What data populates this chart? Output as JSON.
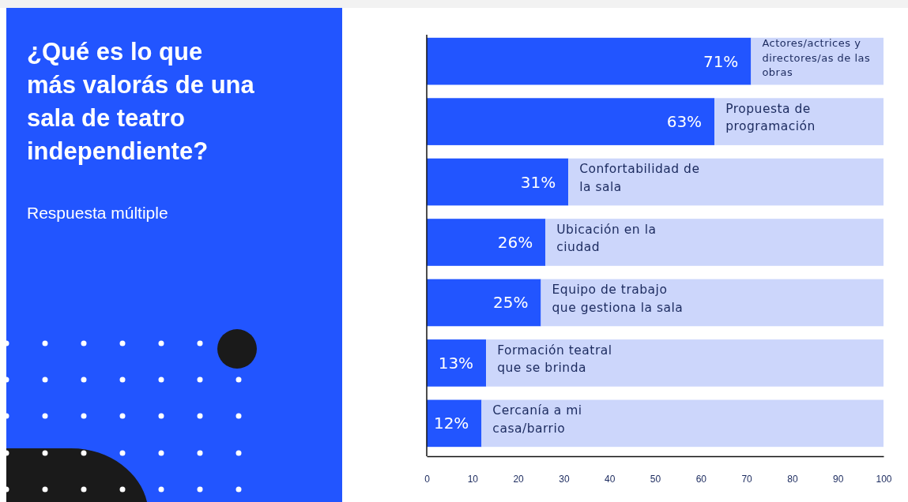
{
  "chart_data": {
    "type": "bar",
    "orientation": "horizontal",
    "stacked": true,
    "title": "¿Qué es lo que más valorás de una sala de teatro independiente?",
    "subtitle": "Respuesta múltiple",
    "categories": [
      "Actores/actrices y directores/as de las obras",
      "Propuesta de programación",
      "Confortabilidad de la sala",
      "Ubicación en la ciudad",
      "Equipo de trabajo que gestiona la sala",
      "Formación teatral que se brinda",
      "Cercanía a mi casa/barrio"
    ],
    "series": [
      {
        "color": "#2255ff",
        "values": [
          71,
          63,
          31,
          26,
          25,
          13,
          12
        ],
        "value_labels": [
          "71%",
          "63%",
          "31%",
          "26%",
          "25%",
          "13%",
          "12%"
        ]
      },
      {
        "color": "#ccd6fb",
        "values": [
          29,
          37,
          69,
          74,
          75,
          87,
          88
        ]
      }
    ],
    "xlim": [
      0,
      100
    ],
    "xticks": [
      0,
      10,
      20,
      30,
      40,
      50,
      60,
      70,
      80,
      90,
      100
    ]
  }
}
